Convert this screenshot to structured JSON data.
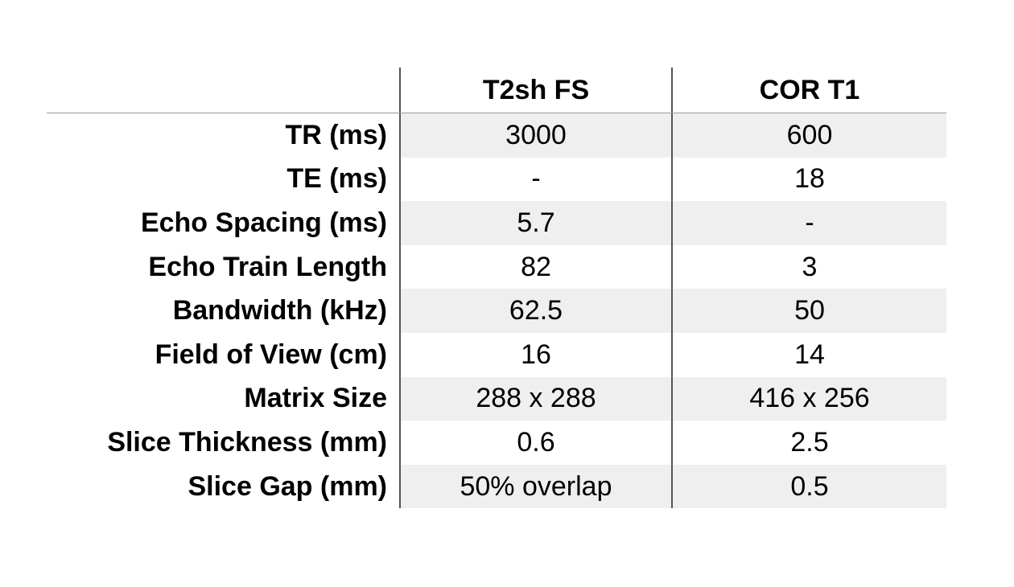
{
  "table": {
    "columns": [
      "",
      "T2sh FS",
      "COR T1"
    ],
    "rows": [
      {
        "label": "TR (ms)",
        "a": "3000",
        "b": "600",
        "shaded": true
      },
      {
        "label": "TE (ms)",
        "a": "-",
        "b": "18",
        "shaded": false
      },
      {
        "label": "Echo Spacing (ms)",
        "a": "5.7",
        "b": "-",
        "shaded": true
      },
      {
        "label": "Echo Train Length",
        "a": "82",
        "b": "3",
        "shaded": false
      },
      {
        "label": "Bandwidth (kHz)",
        "a": "62.5",
        "b": "50",
        "shaded": true
      },
      {
        "label": "Field of View (cm)",
        "a": "16",
        "b": "14",
        "shaded": false
      },
      {
        "label": "Matrix Size",
        "a": "288 x 288",
        "b": "416 x 256",
        "shaded": true
      },
      {
        "label": "Slice Thickness (mm)",
        "a": "0.6",
        "b": "2.5",
        "shaded": false
      },
      {
        "label": "Slice Gap (mm)",
        "a": "50% overlap",
        "b": "0.5",
        "shaded": true
      }
    ]
  },
  "colors": {
    "shade": "#efefef",
    "border": "#555555",
    "header_rule": "#9a9a9a"
  }
}
